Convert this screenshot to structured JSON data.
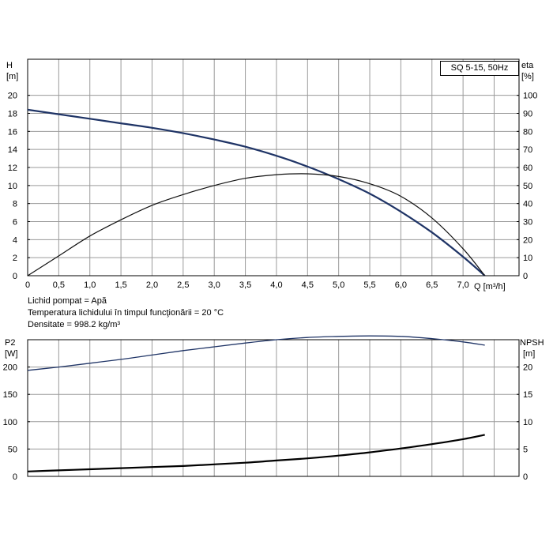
{
  "pump_model": "SQ 5-15, 50Hz",
  "fluid_info": {
    "liquid": "Lichid pompat = Apă",
    "temperature": "Temperatura lichidului în timpul funcţionării = 20 °C",
    "density": "Densitate = 998.2 kg/m³"
  },
  "chart_data": [
    {
      "type": "line",
      "title": "",
      "xlabel": "Q [m³/h]",
      "x_ticks": [
        "0",
        "0,5",
        "1,0",
        "1,5",
        "2,0",
        "2,5",
        "3,0",
        "3,5",
        "4,0",
        "4,5",
        "5,0",
        "5,5",
        "6,0",
        "6,5",
        "7,0"
      ],
      "xlim": [
        0,
        7.9
      ],
      "y_left": {
        "label_top": "H",
        "label_unit": "[m]",
        "ylim": [
          0,
          24
        ],
        "ticks": [
          "0",
          "2",
          "4",
          "6",
          "8",
          "10",
          "12",
          "14",
          "16",
          "18",
          "20"
        ]
      },
      "y_right": {
        "label_top": "eta",
        "label_unit": "[%]",
        "ylim": [
          0,
          120
        ],
        "ticks": [
          "0",
          "10",
          "20",
          "30",
          "40",
          "50",
          "60",
          "70",
          "80",
          "90",
          "100"
        ]
      },
      "series": [
        {
          "name": "H",
          "axis": "left",
          "x": [
            0,
            0.5,
            1.0,
            1.5,
            2.0,
            2.5,
            3.0,
            3.5,
            4.0,
            4.5,
            5.0,
            5.5,
            6.0,
            6.5,
            7.0,
            7.35
          ],
          "y": [
            18.4,
            17.9,
            17.4,
            16.9,
            16.4,
            15.8,
            15.1,
            14.3,
            13.3,
            12.1,
            10.7,
            9.1,
            7.1,
            4.8,
            2.1,
            0
          ]
        },
        {
          "name": "eta",
          "axis": "right",
          "x": [
            0,
            0.5,
            1.0,
            1.5,
            2.0,
            2.5,
            3.0,
            3.5,
            4.0,
            4.5,
            5.0,
            5.5,
            6.0,
            6.5,
            7.0,
            7.35
          ],
          "y": [
            0,
            11,
            22,
            31,
            39,
            45,
            50,
            54,
            56,
            56.5,
            55,
            51,
            44,
            32,
            15,
            0
          ]
        }
      ]
    },
    {
      "type": "line",
      "title": "",
      "xlabel": "",
      "xlim": [
        0,
        7.9
      ],
      "y_left": {
        "label_top": "P2",
        "label_unit": "[W]",
        "ylim": [
          0,
          250
        ],
        "ticks": [
          "0",
          "50",
          "100",
          "150",
          "200"
        ]
      },
      "y_right": {
        "label_top": "NPSH",
        "label_unit": "[m]",
        "ylim": [
          0,
          25
        ],
        "ticks": [
          "0",
          "5",
          "10",
          "15",
          "20"
        ]
      },
      "series": [
        {
          "name": "P2",
          "axis": "left",
          "x": [
            0,
            0.5,
            1.0,
            1.5,
            2.0,
            2.5,
            3.0,
            3.5,
            4.0,
            4.5,
            5.0,
            5.5,
            6.0,
            6.5,
            7.0,
            7.35
          ],
          "y": [
            194,
            200,
            207,
            214,
            222,
            230,
            237,
            244,
            250,
            254,
            256,
            257,
            256,
            252,
            246,
            240
          ]
        },
        {
          "name": "NPSH",
          "axis": "right",
          "x": [
            0,
            0.5,
            1.0,
            1.5,
            2.0,
            2.5,
            3.0,
            3.5,
            4.0,
            4.5,
            5.0,
            5.5,
            6.0,
            6.5,
            7.0,
            7.35
          ],
          "y": [
            0.9,
            1.1,
            1.3,
            1.5,
            1.7,
            1.9,
            2.2,
            2.5,
            2.9,
            3.3,
            3.8,
            4.4,
            5.1,
            5.9,
            6.8,
            7.6
          ]
        }
      ]
    }
  ]
}
